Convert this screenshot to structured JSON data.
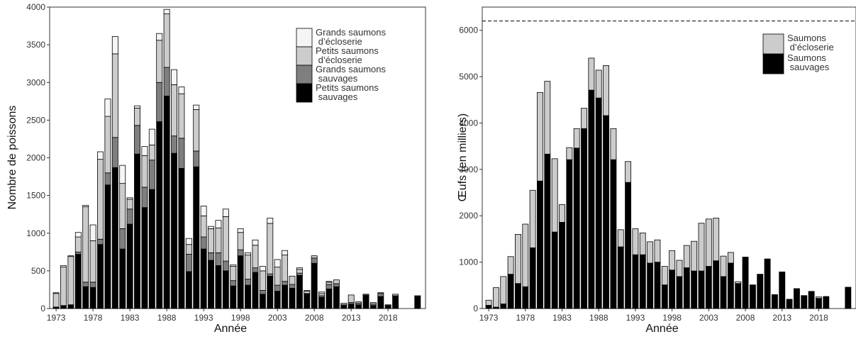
{
  "chart_data": [
    {
      "type": "bar",
      "stacked": true,
      "xlabel": "Année",
      "ylabel": "Nombre de poissons",
      "ylim": [
        0,
        4000
      ],
      "yticks": [
        0,
        500,
        1000,
        1500,
        2000,
        2500,
        3000,
        3500,
        4000
      ],
      "xticks": [
        1973,
        1978,
        1983,
        1988,
        1993,
        1998,
        2003,
        2008,
        2013,
        2018
      ],
      "legend_position": "top-right",
      "legend": [
        "Grands saumons\n d’écloserie",
        "Petits saumons\n d’écloserie",
        "Grands saumons\n sauvages",
        "Petits saumons\n sauvages"
      ],
      "x": [
        1973,
        1974,
        1975,
        1976,
        1977,
        1978,
        1979,
        1980,
        1981,
        1982,
        1983,
        1984,
        1985,
        1986,
        1987,
        1988,
        1989,
        1990,
        1991,
        1992,
        1993,
        1994,
        1995,
        1996,
        1997,
        1998,
        1999,
        2000,
        2001,
        2002,
        2003,
        2004,
        2005,
        2006,
        2007,
        2008,
        2009,
        2010,
        2011,
        2012,
        2013,
        2014,
        2015,
        2016,
        2017,
        2018,
        2019,
        2020,
        2021,
        2022
      ],
      "series": [
        {
          "color": "#000000",
          "values": [
            20,
            40,
            50,
            720,
            290,
            280,
            850,
            1640,
            1870,
            790,
            1120,
            2050,
            1340,
            1580,
            2480,
            2820,
            2060,
            1860,
            490,
            1880,
            790,
            640,
            570,
            500,
            300,
            700,
            310,
            480,
            190,
            430,
            230,
            310,
            270,
            440,
            190,
            600,
            150,
            260,
            290,
            40,
            60,
            50,
            170,
            40,
            160,
            40,
            160,
            0,
            0,
            160
          ]
        },
        {
          "color": "#7f7f7f",
          "values": [
            0,
            0,
            0,
            30,
            60,
            70,
            70,
            160,
            400,
            270,
            200,
            380,
            270,
            390,
            520,
            380,
            230,
            400,
            230,
            210,
            160,
            100,
            170,
            130,
            70,
            80,
            80,
            60,
            50,
            30,
            80,
            50,
            50,
            30,
            10,
            70,
            20,
            60,
            40,
            10,
            20,
            20,
            10,
            20,
            40,
            10,
            10,
            0,
            0,
            10
          ]
        },
        {
          "color": "#cccccc",
          "values": [
            180,
            510,
            640,
            200,
            1000,
            550,
            1060,
            750,
            1110,
            600,
            130,
            230,
            420,
            200,
            560,
            710,
            680,
            590,
            130,
            550,
            280,
            320,
            330,
            590,
            190,
            230,
            320,
            300,
            260,
            670,
            240,
            350,
            110,
            50,
            30,
            30,
            30,
            30,
            50,
            20,
            100,
            20,
            10,
            20,
            10,
            0,
            20,
            0,
            0,
            0
          ]
        },
        {
          "color": "#f5f5f5",
          "values": [
            10,
            20,
            10,
            60,
            20,
            210,
            100,
            230,
            230,
            240,
            20,
            30,
            120,
            210,
            90,
            60,
            200,
            90,
            80,
            60,
            130,
            30,
            100,
            100,
            20,
            50,
            30,
            70,
            60,
            70,
            100,
            60,
            0,
            20,
            10,
            0,
            20,
            10,
            0,
            0,
            0,
            0,
            0,
            0,
            0,
            0,
            0,
            0,
            0,
            0
          ]
        }
      ]
    },
    {
      "type": "bar",
      "stacked": true,
      "xlabel": "Année",
      "ylabel": "Œufs (en milliers)",
      "ylim": [
        0,
        6500
      ],
      "yticks": [
        0,
        1000,
        2000,
        3000,
        4000,
        5000,
        6000
      ],
      "xticks": [
        1973,
        1978,
        1983,
        1988,
        1993,
        1998,
        2003,
        2008,
        2013,
        2018
      ],
      "reference_line": 6200,
      "legend_position": "top-right",
      "legend": [
        "Saumons\n d’écloserie",
        "Saumons\n sauvages"
      ],
      "x": [
        1973,
        1974,
        1975,
        1976,
        1977,
        1978,
        1979,
        1980,
        1981,
        1982,
        1983,
        1984,
        1985,
        1986,
        1987,
        1988,
        1989,
        1990,
        1991,
        1992,
        1993,
        1994,
        1995,
        1996,
        1997,
        1998,
        1999,
        2000,
        2001,
        2002,
        2003,
        2004,
        2005,
        2006,
        2007,
        2008,
        2009,
        2010,
        2011,
        2012,
        2013,
        2014,
        2015,
        2016,
        2017,
        2018,
        2019,
        2020,
        2021,
        2022
      ],
      "series": [
        {
          "color": "#000000",
          "values": [
            70,
            30,
            100,
            740,
            540,
            470,
            1310,
            2750,
            3330,
            1650,
            1860,
            3210,
            3460,
            3880,
            4710,
            4540,
            4160,
            3210,
            1330,
            2720,
            1160,
            1160,
            980,
            1000,
            510,
            830,
            690,
            880,
            810,
            810,
            910,
            1030,
            690,
            980,
            540,
            1110,
            510,
            740,
            1070,
            300,
            790,
            200,
            430,
            280,
            370,
            220,
            260,
            0,
            0,
            460
          ]
        },
        {
          "color": "#cccccc",
          "values": [
            110,
            420,
            590,
            380,
            1060,
            1350,
            1240,
            1910,
            1570,
            1580,
            380,
            260,
            420,
            440,
            690,
            600,
            1080,
            670,
            370,
            450,
            560,
            470,
            460,
            480,
            400,
            420,
            350,
            480,
            640,
            1030,
            1020,
            920,
            440,
            230,
            40,
            0,
            0,
            0,
            0,
            0,
            0,
            0,
            0,
            0,
            0,
            30,
            0,
            0,
            0,
            0
          ]
        }
      ]
    }
  ]
}
